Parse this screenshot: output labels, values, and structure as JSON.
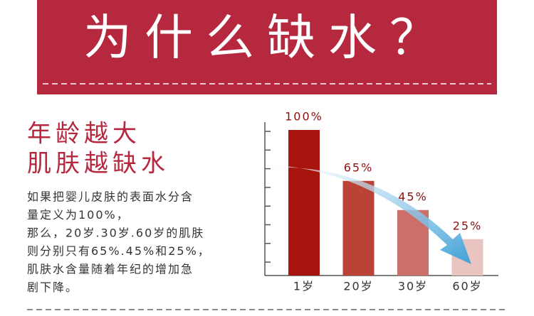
{
  "header": {
    "title": "为什么缺水？"
  },
  "heading": [
    "年龄越大",
    "肌肤越缺水"
  ],
  "body": [
    "如果把婴儿皮肤的表面水分含",
    "量定义为100%，",
    "那么，20岁.30岁.60岁的肌肤",
    "则分别只有65%.45%和25%，",
    "肌肤水含量随着年纪的增加急",
    "剧下降。"
  ],
  "chart_data": {
    "type": "bar",
    "categories": [
      "1岁",
      "20岁",
      "30岁",
      "60岁"
    ],
    "values": [
      100,
      65,
      45,
      25
    ],
    "value_labels": [
      "100%",
      "65%",
      "45%",
      "25%"
    ],
    "colors": [
      "#a8150f",
      "#bb4236",
      "#cd6f69",
      "#e9c4c1"
    ],
    "ylim": [
      0,
      100
    ]
  }
}
